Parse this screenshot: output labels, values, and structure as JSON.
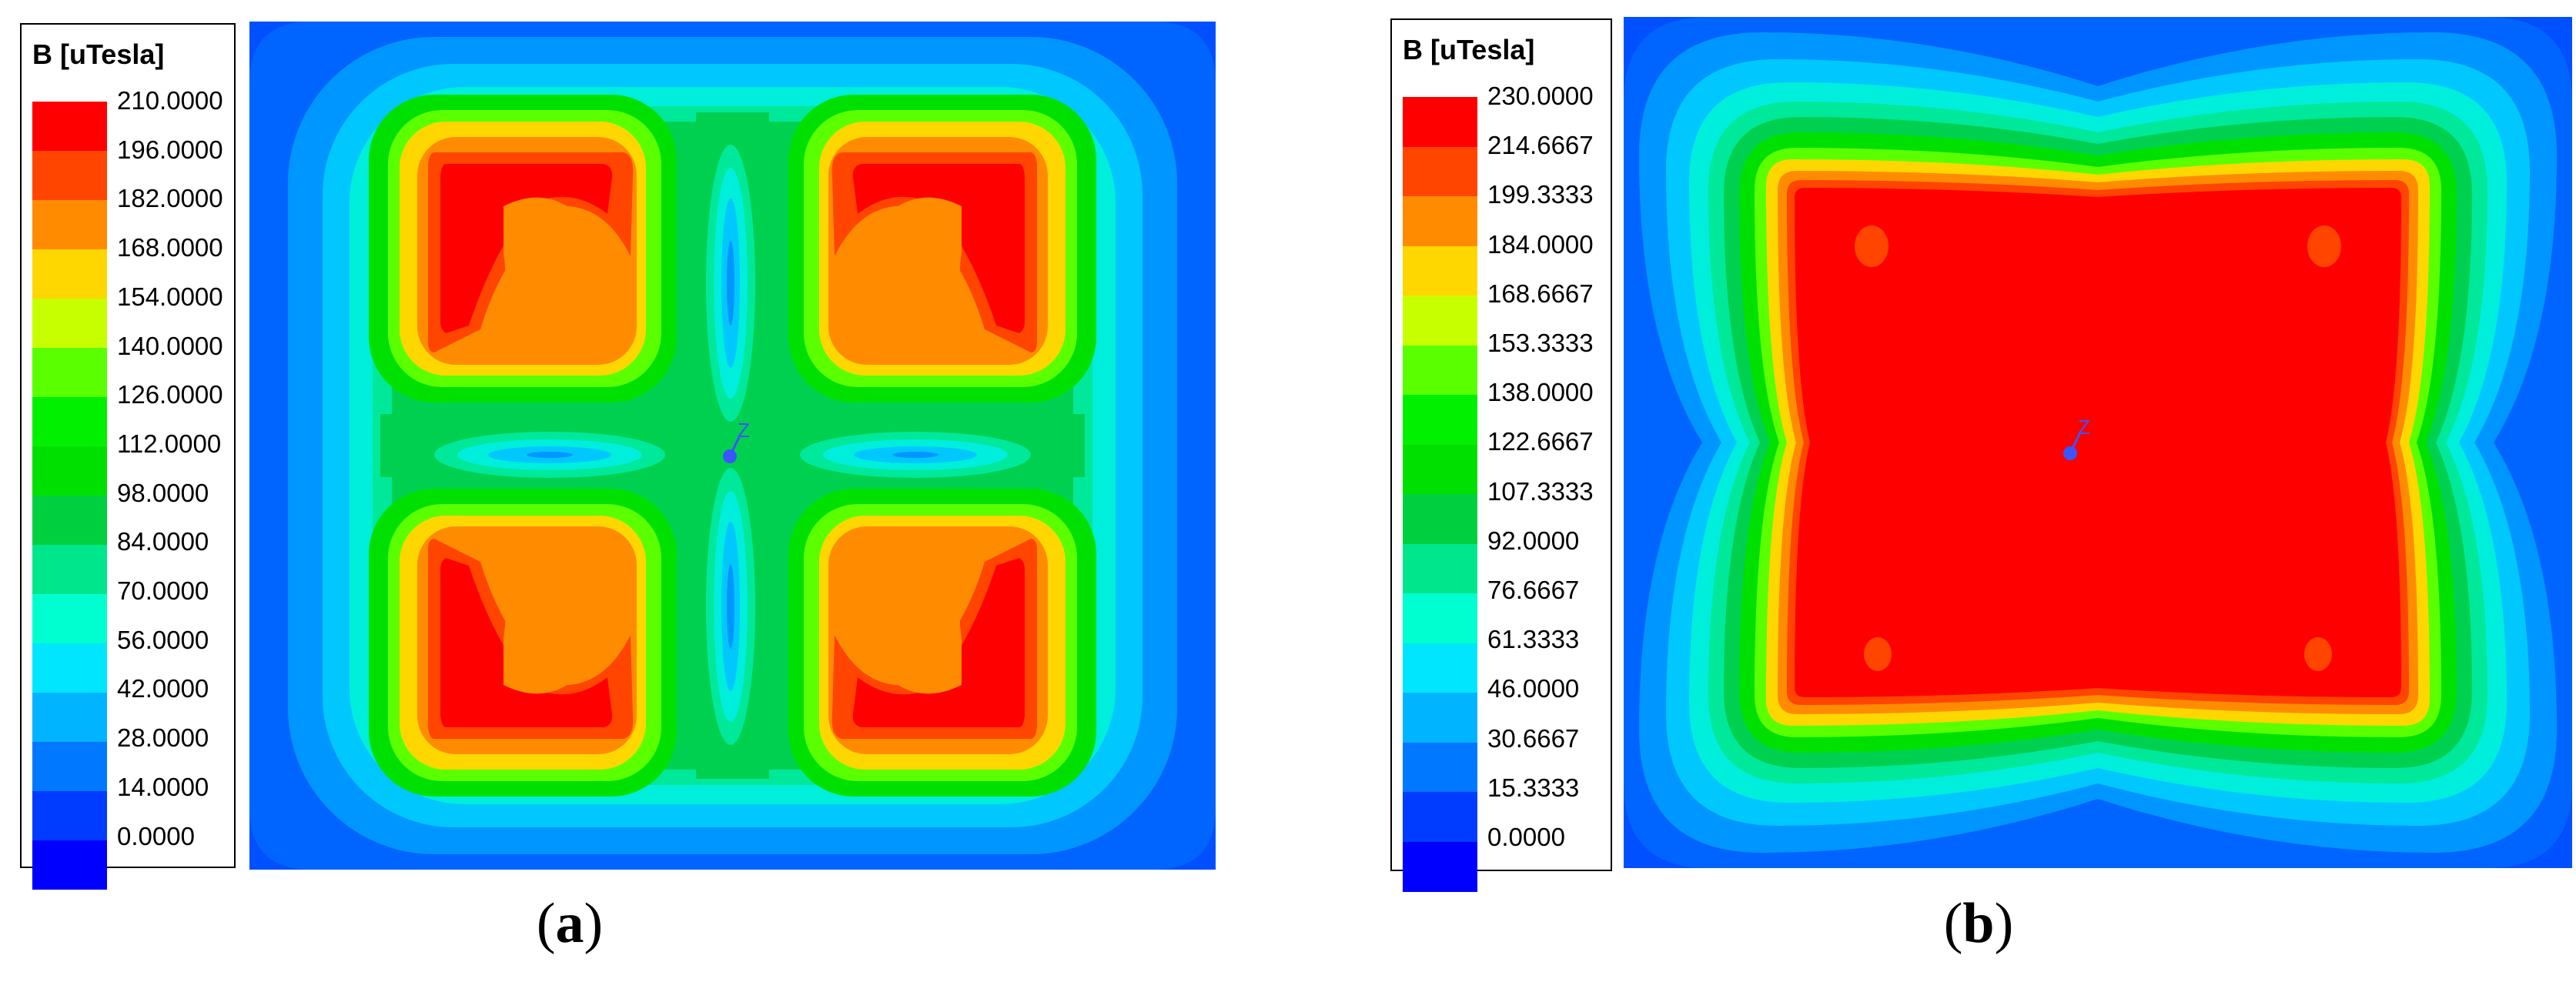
{
  "panels": [
    {
      "id": "a",
      "caption": {
        "open": "(",
        "letter": "a",
        "close": ")"
      },
      "legend": {
        "title": "B [uTesla]",
        "ticks": [
          "210.0000",
          "196.0000",
          "182.0000",
          "168.0000",
          "154.0000",
          "140.0000",
          "126.0000",
          "112.0000",
          "98.0000",
          "84.0000",
          "70.0000",
          "56.0000",
          "42.0000",
          "28.0000",
          "14.0000",
          "0.0000"
        ]
      },
      "axis_label": "Z"
    },
    {
      "id": "b",
      "caption": {
        "open": "(",
        "letter": "b",
        "close": ")"
      },
      "legend": {
        "title": "B [uTesla]",
        "ticks": [
          "230.0000",
          "214.6667",
          "199.3333",
          "184.0000",
          "168.6667",
          "153.3333",
          "138.0000",
          "122.6667",
          "107.3333",
          "92.0000",
          "76.6667",
          "61.3333",
          "46.0000",
          "30.6667",
          "15.3333",
          "0.0000"
        ]
      },
      "axis_label": "Z"
    }
  ],
  "colorscale": [
    "#ff0000",
    "#ff4500",
    "#ff8c00",
    "#ffd700",
    "#c8ff00",
    "#5aff00",
    "#00f000",
    "#00e000",
    "#00d040",
    "#00e68c",
    "#00ffd0",
    "#00e6ff",
    "#00b4ff",
    "#0078ff",
    "#003cff",
    "#0000ff"
  ]
}
